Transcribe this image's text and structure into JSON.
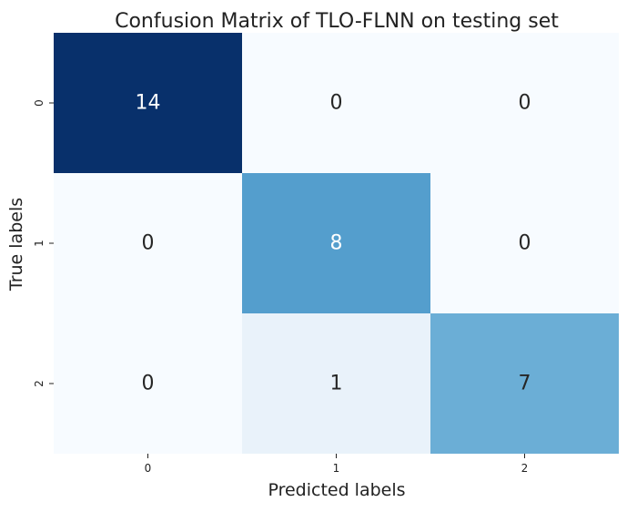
{
  "chart_data": {
    "type": "heatmap",
    "title": "Confusion Matrix of TLO-FLNN on testing set",
    "xlabel": "Predicted labels",
    "ylabel": "True labels",
    "x_categories": [
      "0",
      "1",
      "2"
    ],
    "y_categories": [
      "0",
      "1",
      "2"
    ],
    "values": [
      [
        14,
        0,
        0
      ],
      [
        0,
        8,
        0
      ],
      [
        0,
        1,
        7
      ]
    ],
    "vmin": 0,
    "vmax": 14,
    "colormap": "Blues",
    "colorbar": false,
    "grid": false
  }
}
